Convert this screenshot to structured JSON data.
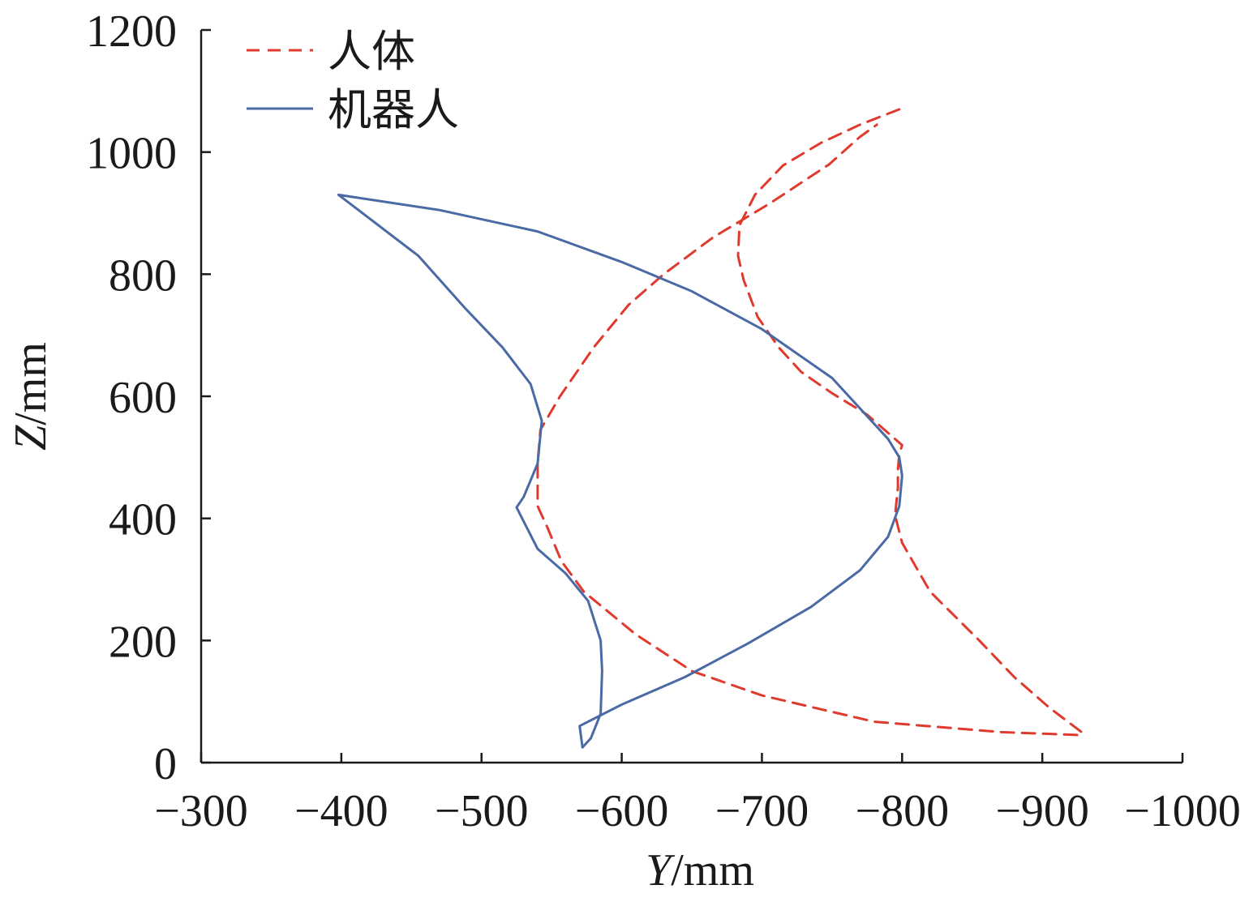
{
  "chart_data": {
    "type": "line",
    "title": "",
    "xlabel": {
      "var": "Y",
      "unit": "/mm"
    },
    "ylabel": {
      "var": "Z",
      "unit": "/mm"
    },
    "xlim": [
      -300,
      -1000
    ],
    "ylim": [
      0,
      1200
    ],
    "x_reversed": true,
    "xticks": [
      -300,
      -400,
      -500,
      -600,
      -700,
      -800,
      -900,
      -1000
    ],
    "xtick_labels": [
      "−300",
      "−400",
      "−500",
      "−600",
      "−700",
      "−800",
      "−900",
      "−1000"
    ],
    "yticks": [
      0,
      200,
      400,
      600,
      800,
      1000,
      1200
    ],
    "ytick_labels": [
      "0",
      "200",
      "400",
      "600",
      "800",
      "1000",
      "1200"
    ],
    "grid": false,
    "legend_position": "top-left",
    "series": [
      {
        "name": "人体",
        "color": "#e03a2e",
        "dash": true,
        "points": [
          [
            -798,
            1070
          ],
          [
            -770,
            1045
          ],
          [
            -742,
            1015
          ],
          [
            -715,
            978
          ],
          [
            -695,
            930
          ],
          [
            -684,
            880
          ],
          [
            -683,
            830
          ],
          [
            -687,
            790
          ],
          [
            -697,
            730
          ],
          [
            -712,
            680
          ],
          [
            -728,
            640
          ],
          [
            -750,
            605
          ],
          [
            -775,
            570
          ],
          [
            -800,
            520
          ],
          [
            -798,
            505
          ],
          [
            -797,
            480
          ],
          [
            -797,
            450
          ],
          [
            -795,
            405
          ],
          [
            -800,
            360
          ],
          [
            -820,
            280
          ],
          [
            -855,
            200
          ],
          [
            -880,
            140
          ],
          [
            -905,
            90
          ],
          [
            -928,
            50
          ],
          [
            -928,
            45
          ],
          [
            -870,
            50
          ],
          [
            -780,
            67
          ],
          [
            -700,
            110
          ],
          [
            -650,
            150
          ],
          [
            -610,
            210
          ],
          [
            -573,
            280
          ],
          [
            -557,
            330
          ],
          [
            -547,
            385
          ],
          [
            -540,
            420
          ],
          [
            -540,
            490
          ],
          [
            -542,
            545
          ],
          [
            -556,
            600
          ],
          [
            -580,
            680
          ],
          [
            -605,
            750
          ],
          [
            -630,
            800
          ],
          [
            -665,
            860
          ],
          [
            -705,
            915
          ],
          [
            -748,
            980
          ],
          [
            -770,
            1025
          ],
          [
            -782,
            1045
          ]
        ]
      },
      {
        "name": "机器人",
        "color": "#4a6aa5",
        "dash": false,
        "points": [
          [
            -398,
            930
          ],
          [
            -470,
            905
          ],
          [
            -540,
            870
          ],
          [
            -600,
            820
          ],
          [
            -650,
            772
          ],
          [
            -700,
            710
          ],
          [
            -750,
            630
          ],
          [
            -790,
            530
          ],
          [
            -798,
            500
          ],
          [
            -800,
            470
          ],
          [
            -798,
            420
          ],
          [
            -790,
            370
          ],
          [
            -770,
            315
          ],
          [
            -735,
            255
          ],
          [
            -690,
            195
          ],
          [
            -645,
            140
          ],
          [
            -600,
            95
          ],
          [
            -570,
            60
          ],
          [
            -572,
            25
          ],
          [
            -578,
            40
          ],
          [
            -585,
            80
          ],
          [
            -586,
            150
          ],
          [
            -585,
            200
          ],
          [
            -576,
            265
          ],
          [
            -560,
            310
          ],
          [
            -540,
            350
          ],
          [
            -525,
            418
          ],
          [
            -530,
            435
          ],
          [
            -540,
            490
          ],
          [
            -543,
            560
          ],
          [
            -535,
            620
          ],
          [
            -515,
            680
          ],
          [
            -488,
            745
          ],
          [
            -455,
            830
          ],
          [
            -398,
            930
          ]
        ]
      }
    ]
  }
}
